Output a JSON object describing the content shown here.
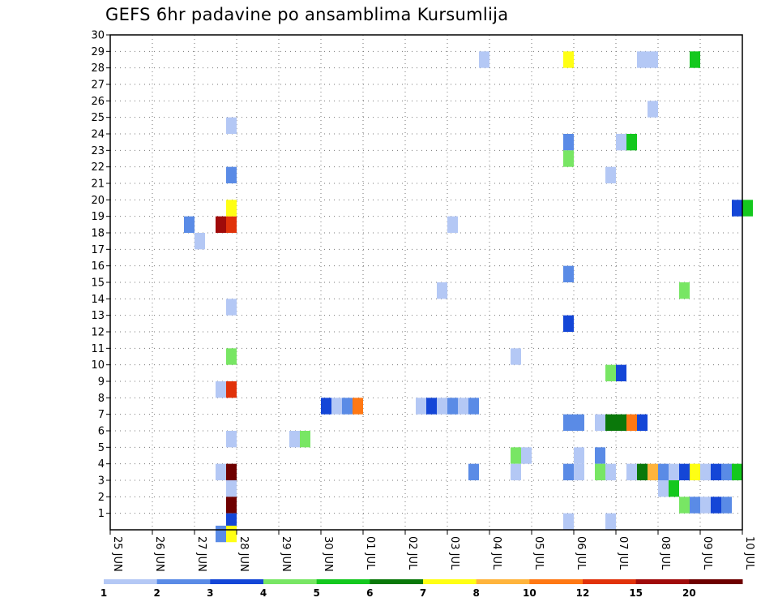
{
  "chart_data": {
    "type": "heatmap",
    "title": "GEFS 6hr padavine po ansamblima Kursumlija",
    "xlabel": "",
    "ylabel": "",
    "x_tick_labels": [
      "25 JUN",
      "26 JUN",
      "27 JUN",
      "28 JUN",
      "29 JUN",
      "30 JUN",
      "01 JUL",
      "02 JUL",
      "03 JUL",
      "04 JUL",
      "05 JUL",
      "06 JUL",
      "07 JUL",
      "08 JUL",
      "09 JUL",
      "10 JUL"
    ],
    "y_ticks": [
      1,
      2,
      3,
      4,
      5,
      6,
      7,
      8,
      9,
      10,
      11,
      12,
      13,
      14,
      15,
      16,
      17,
      18,
      19,
      20,
      21,
      22,
      23,
      24,
      25,
      26,
      27,
      28,
      29,
      30
    ],
    "xlim": [
      0,
      60
    ],
    "ylim": [
      0,
      30
    ],
    "x_unit_note": "x = 6-hour steps since 25 JUN 00z",
    "colorbar": {
      "labels": [
        "1",
        "2",
        "3",
        "4",
        "5",
        "6",
        "7",
        "8",
        "10",
        "12",
        "15",
        "20"
      ],
      "colors": [
        "#b4c8f5",
        "#5a8be6",
        "#1446d7",
        "#78e664",
        "#14c81e",
        "#0a780a",
        "#ffff14",
        "#ffb43c",
        "#ff7814",
        "#e1320a",
        "#a00a0a",
        "#6e0000"
      ]
    },
    "cells": [
      [
        7.5,
        18.5,
        "#5a8be6"
      ],
      [
        8.5,
        17.5,
        "#b4c8f5"
      ],
      [
        10.5,
        18.5,
        "#a00a0a"
      ],
      [
        11.5,
        18.5,
        "#e1320a"
      ],
      [
        11.5,
        19.5,
        "#ffff14"
      ],
      [
        11.5,
        21.5,
        "#5a8be6"
      ],
      [
        11.5,
        24.5,
        "#b4c8f5"
      ],
      [
        11.5,
        13.5,
        "#b4c8f5"
      ],
      [
        11.5,
        10.5,
        "#78e664"
      ],
      [
        10.5,
        8.5,
        "#b4c8f5"
      ],
      [
        11.5,
        8.5,
        "#e1320a"
      ],
      [
        11.5,
        5.5,
        "#b4c8f5"
      ],
      [
        10.5,
        3.5,
        "#b4c8f5"
      ],
      [
        11.5,
        3.5,
        "#6e0000"
      ],
      [
        11.5,
        2.5,
        "#b4c8f5"
      ],
      [
        11.5,
        1.5,
        "#6e0000"
      ],
      [
        11.5,
        0.5,
        "#1446d7"
      ],
      [
        10.5,
        -0.25,
        "#5a8be6"
      ],
      [
        11.5,
        -0.25,
        "#ffff14"
      ],
      [
        17.5,
        5.5,
        "#b4c8f5"
      ],
      [
        18.5,
        5.5,
        "#78e664"
      ],
      [
        20.5,
        7.5,
        "#1446d7"
      ],
      [
        21.5,
        7.5,
        "#b4c8f5"
      ],
      [
        22.5,
        7.5,
        "#5a8be6"
      ],
      [
        23.5,
        7.5,
        "#ff7814"
      ],
      [
        29.5,
        7.5,
        "#b4c8f5"
      ],
      [
        30.5,
        7.5,
        "#1446d7"
      ],
      [
        31.5,
        7.5,
        "#b4c8f5"
      ],
      [
        32.5,
        7.5,
        "#5a8be6"
      ],
      [
        33.5,
        7.5,
        "#b4c8f5"
      ],
      [
        34.5,
        7.5,
        "#5a8be6"
      ],
      [
        32.5,
        18.5,
        "#b4c8f5"
      ],
      [
        31.5,
        14.5,
        "#b4c8f5"
      ],
      [
        35.5,
        28.5,
        "#b4c8f5"
      ],
      [
        34.5,
        3.5,
        "#5a8be6"
      ],
      [
        38.5,
        10.5,
        "#b4c8f5"
      ],
      [
        38.5,
        4.5,
        "#78e664"
      ],
      [
        39.5,
        4.5,
        "#b4c8f5"
      ],
      [
        38.5,
        3.5,
        "#b4c8f5"
      ],
      [
        43.5,
        28.5,
        "#ffff14"
      ],
      [
        43.5,
        23.5,
        "#5a8be6"
      ],
      [
        43.5,
        22.5,
        "#78e664"
      ],
      [
        43.5,
        15.5,
        "#5a8be6"
      ],
      [
        43.5,
        12.5,
        "#1446d7"
      ],
      [
        43.5,
        6.5,
        "#5a8be6"
      ],
      [
        44.5,
        6.5,
        "#5a8be6"
      ],
      [
        44.5,
        4.5,
        "#b4c8f5"
      ],
      [
        43.5,
        3.5,
        "#5a8be6"
      ],
      [
        44.5,
        3.5,
        "#b4c8f5"
      ],
      [
        43.5,
        0.5,
        "#b4c8f5"
      ],
      [
        46.5,
        4.5,
        "#5a8be6"
      ],
      [
        46.5,
        3.5,
        "#78e664"
      ],
      [
        47.5,
        3.5,
        "#b4c8f5"
      ],
      [
        46.5,
        6.5,
        "#b4c8f5"
      ],
      [
        47.5,
        6.5,
        "#0a780a"
      ],
      [
        48.5,
        6.5,
        "#0a780a"
      ],
      [
        49.5,
        6.5,
        "#ff7814"
      ],
      [
        50.5,
        6.5,
        "#1446d7"
      ],
      [
        47.5,
        9.5,
        "#78e664"
      ],
      [
        48.5,
        9.5,
        "#1446d7"
      ],
      [
        47.5,
        21.5,
        "#b4c8f5"
      ],
      [
        48.5,
        23.5,
        "#b4c8f5"
      ],
      [
        49.5,
        23.5,
        "#14c81e"
      ],
      [
        47.5,
        0.5,
        "#b4c8f5"
      ],
      [
        50.5,
        28.5,
        "#b4c8f5"
      ],
      [
        51.5,
        28.5,
        "#b4c8f5"
      ],
      [
        51.5,
        25.5,
        "#b4c8f5"
      ],
      [
        49.5,
        3.5,
        "#b4c8f5"
      ],
      [
        50.5,
        3.5,
        "#0a780a"
      ],
      [
        51.5,
        3.5,
        "#ffb43c"
      ],
      [
        52.5,
        3.5,
        "#5a8be6"
      ],
      [
        53.5,
        3.5,
        "#b4c8f5"
      ],
      [
        54.5,
        3.5,
        "#1446d7"
      ],
      [
        55.5,
        3.5,
        "#ffff14"
      ],
      [
        56.5,
        3.5,
        "#b4c8f5"
      ],
      [
        57.5,
        3.5,
        "#1446d7"
      ],
      [
        58.5,
        3.5,
        "#5a8be6"
      ],
      [
        59.5,
        3.5,
        "#14c81e"
      ],
      [
        52.5,
        2.5,
        "#b4c8f5"
      ],
      [
        53.5,
        2.5,
        "#14c81e"
      ],
      [
        54.5,
        1.5,
        "#78e664"
      ],
      [
        55.5,
        1.5,
        "#5a8be6"
      ],
      [
        56.5,
        1.5,
        "#b4c8f5"
      ],
      [
        57.5,
        1.5,
        "#1446d7"
      ],
      [
        58.5,
        1.5,
        "#5a8be6"
      ],
      [
        54.5,
        14.5,
        "#78e664"
      ],
      [
        55.5,
        28.5,
        "#14c81e"
      ],
      [
        59.5,
        19.5,
        "#1446d7"
      ],
      [
        60.5,
        19.5,
        "#14c81e"
      ]
    ]
  }
}
